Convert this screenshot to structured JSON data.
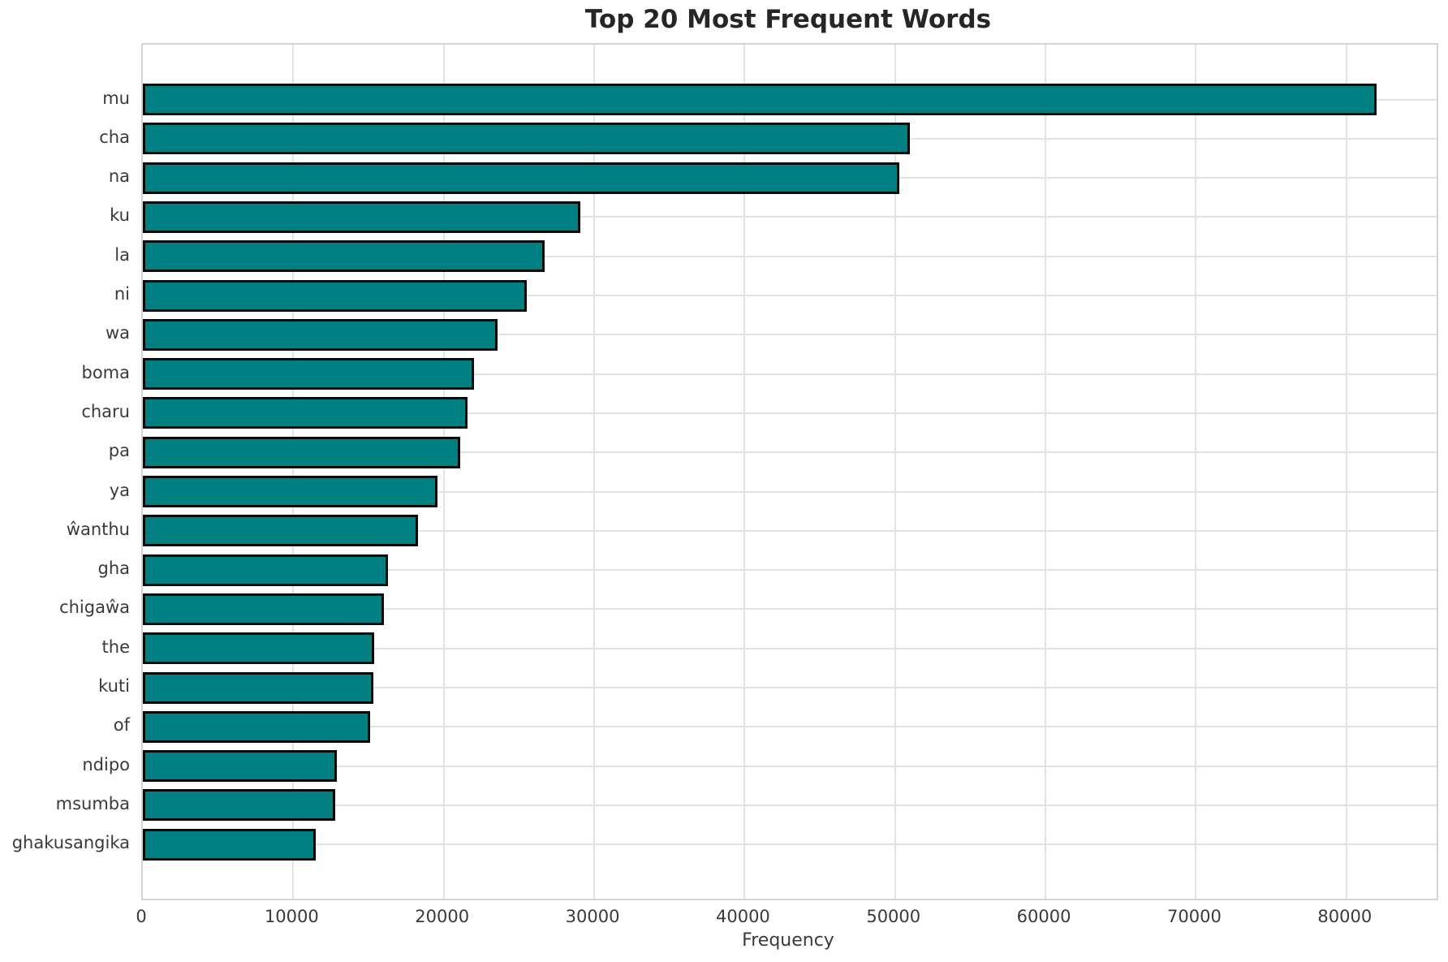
{
  "chart_data": {
    "type": "bar",
    "orientation": "horizontal",
    "title": "Top 20 Most Frequent Words",
    "xlabel": "Frequency",
    "ylabel": "",
    "categories": [
      "mu",
      "cha",
      "na",
      "ku",
      "la",
      "ni",
      "wa",
      "boma",
      "charu",
      "pa",
      "ya",
      "ŵanthu",
      "gha",
      "chigaŵa",
      "the",
      "kuti",
      "of",
      "ndipo",
      "msumba",
      "ghakusangika"
    ],
    "values": [
      82000,
      51000,
      50300,
      29100,
      26700,
      25500,
      23600,
      22000,
      21600,
      21100,
      19600,
      18300,
      16300,
      16000,
      15400,
      15300,
      15100,
      12900,
      12800,
      11500
    ],
    "xlim": [
      0,
      86000
    ],
    "xticks": [
      0,
      10000,
      20000,
      30000,
      40000,
      50000,
      60000,
      70000,
      80000
    ],
    "grid": true,
    "legend": false,
    "bar_color": "#008080",
    "bar_edge_color": "#0a0a0a",
    "grid_color": "#e2e2e2",
    "frame_color": "#d4d4d4",
    "tick_text_color": "#3a3a3a",
    "title_color": "#262626"
  }
}
